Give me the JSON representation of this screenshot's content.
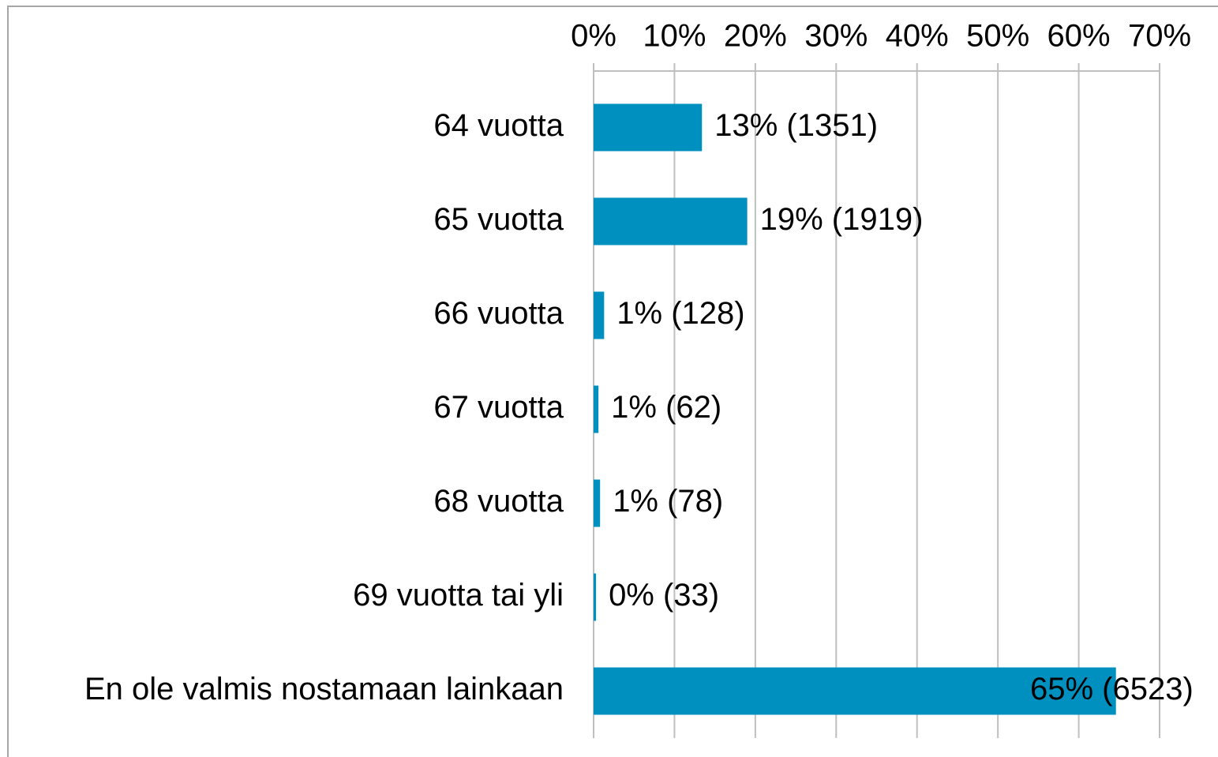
{
  "chart_data": {
    "type": "hbar",
    "categories": [
      "64 vuotta",
      "65 vuotta",
      "66 vuotta",
      "67 vuotta",
      "68 vuotta",
      "69 vuotta tai yli",
      "En ole valmis nostamaan lainkaan"
    ],
    "values": [
      13.4,
      19.0,
      1.3,
      0.6,
      0.8,
      0.3,
      64.6
    ],
    "value_labels": [
      "13% (1351)",
      "19% (1919)",
      "1% (128)",
      "1% (62)",
      "1% (78)",
      "0% (33)",
      "65% (6523)"
    ],
    "color": "#0090bf",
    "xlim": [
      0,
      70
    ],
    "xticks": [
      {
        "value": 0,
        "label": "0%"
      },
      {
        "value": 10,
        "label": "10%"
      },
      {
        "value": 20,
        "label": "20%"
      },
      {
        "value": 30,
        "label": "30%"
      },
      {
        "value": 40,
        "label": "40%"
      },
      {
        "value": 50,
        "label": "50%"
      },
      {
        "value": 60,
        "label": "60%"
      },
      {
        "value": 70,
        "label": "70%"
      }
    ],
    "grid": true
  }
}
